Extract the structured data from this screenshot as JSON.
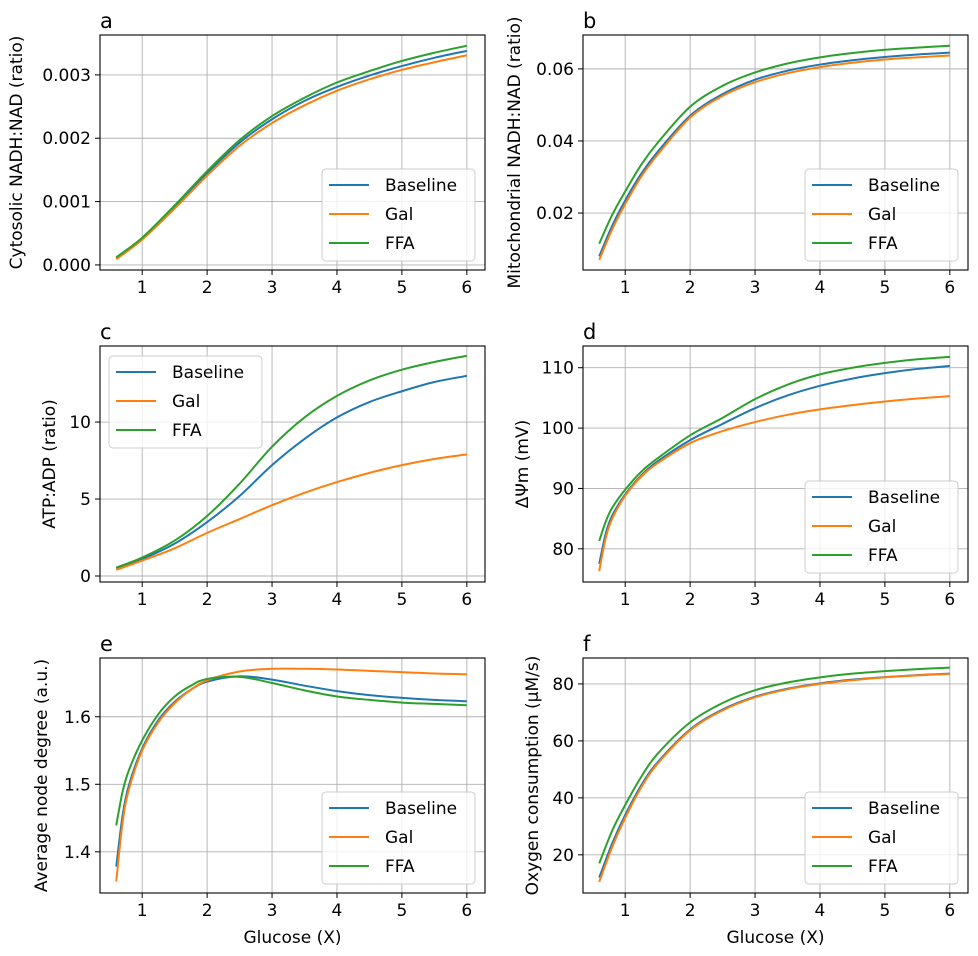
{
  "chart_data": [
    {
      "type": "line",
      "panel": "a",
      "title": "a",
      "xlabel": "",
      "ylabel": "Cytosolic NADH:NAD (ratio)",
      "xlim": [
        0.35,
        6.28
      ],
      "ylim": [
        -8e-05,
        0.00363
      ],
      "xticks": [
        1,
        2,
        3,
        4,
        5,
        6
      ],
      "xtick_labels": [
        "1",
        "2",
        "3",
        "4",
        "5",
        "6"
      ],
      "yticks": [
        0,
        0.001,
        0.002,
        0.003
      ],
      "ytick_labels": [
        "0.000",
        "0.001",
        "0.002",
        "0.003"
      ],
      "grid": true,
      "legend": "lower-right",
      "x": [
        0.6,
        1.0,
        1.5,
        2.0,
        2.5,
        3.0,
        3.5,
        4.0,
        4.5,
        5.0,
        5.5,
        6.0
      ],
      "series": [
        {
          "name": "Baseline",
          "values": [
            0.0001,
            0.00042,
            0.00092,
            0.00145,
            0.00193,
            0.0023,
            0.00259,
            0.00281,
            0.00299,
            0.00314,
            0.00327,
            0.00338
          ]
        },
        {
          "name": "Gal",
          "values": [
            9e-05,
            0.0004,
            0.00089,
            0.00141,
            0.00188,
            0.00224,
            0.00252,
            0.00275,
            0.00293,
            0.00308,
            0.0032,
            0.00331
          ]
        },
        {
          "name": "FFA",
          "values": [
            0.00012,
            0.00043,
            0.00094,
            0.00148,
            0.00197,
            0.00235,
            0.00264,
            0.00288,
            0.00306,
            0.00322,
            0.00335,
            0.00346
          ]
        }
      ]
    },
    {
      "type": "line",
      "panel": "b",
      "title": "b",
      "xlabel": "",
      "ylabel": "Mitochondrial NADH:NAD (ratio)",
      "xlim": [
        0.35,
        6.28
      ],
      "ylim": [
        0.0042,
        0.0694
      ],
      "xticks": [
        1,
        2,
        3,
        4,
        5,
        6
      ],
      "xtick_labels": [
        "1",
        "2",
        "3",
        "4",
        "5",
        "6"
      ],
      "yticks": [
        0.02,
        0.04,
        0.06
      ],
      "ytick_labels": [
        "0.02",
        "0.04",
        "0.06"
      ],
      "grid": true,
      "legend": "lower-right",
      "x": [
        0.6,
        0.8,
        1.0,
        1.25,
        1.5,
        2.0,
        2.5,
        3.0,
        3.5,
        4.0,
        4.5,
        5.0,
        5.5,
        6.0
      ],
      "series": [
        {
          "name": "Baseline",
          "values": [
            0.008,
            0.0165,
            0.0235,
            0.031,
            0.037,
            0.047,
            0.053,
            0.057,
            0.0595,
            0.0612,
            0.0624,
            0.0633,
            0.064,
            0.0645
          ]
        },
        {
          "name": "Gal",
          "values": [
            0.007,
            0.0155,
            0.0225,
            0.0302,
            0.0362,
            0.0465,
            0.0525,
            0.0563,
            0.0588,
            0.0605,
            0.0617,
            0.0626,
            0.0632,
            0.0637
          ]
        },
        {
          "name": "FFA",
          "values": [
            0.0115,
            0.0195,
            0.026,
            0.0335,
            0.0395,
            0.0495,
            0.0553,
            0.059,
            0.0615,
            0.0632,
            0.0644,
            0.0653,
            0.0659,
            0.0664
          ]
        }
      ]
    },
    {
      "type": "line",
      "panel": "c",
      "title": "c",
      "xlabel": "",
      "ylabel": "ATP:ADP (ratio)",
      "xlim": [
        0.35,
        6.28
      ],
      "ylim": [
        -0.39,
        14.94
      ],
      "xticks": [
        1,
        2,
        3,
        4,
        5,
        6
      ],
      "xtick_labels": [
        "1",
        "2",
        "3",
        "4",
        "5",
        "6"
      ],
      "yticks": [
        0,
        5,
        10
      ],
      "ytick_labels": [
        "0",
        "5",
        "10"
      ],
      "grid": true,
      "legend": "upper-left",
      "x": [
        0.6,
        1.0,
        1.5,
        2.0,
        2.5,
        3.0,
        3.5,
        4.0,
        4.5,
        5.0,
        5.5,
        6.0
      ],
      "series": [
        {
          "name": "Baseline",
          "values": [
            0.5,
            1.1,
            2.1,
            3.5,
            5.2,
            7.2,
            8.9,
            10.3,
            11.3,
            12.0,
            12.6,
            13.0
          ]
        },
        {
          "name": "Gal",
          "values": [
            0.4,
            1.0,
            1.8,
            2.8,
            3.7,
            4.6,
            5.4,
            6.1,
            6.7,
            7.2,
            7.6,
            7.9
          ]
        },
        {
          "name": "FFA",
          "values": [
            0.55,
            1.2,
            2.3,
            3.9,
            6.0,
            8.4,
            10.3,
            11.7,
            12.7,
            13.4,
            13.9,
            14.3
          ]
        }
      ]
    },
    {
      "type": "line",
      "panel": "d",
      "title": "d",
      "xlabel": "",
      "ylabel": "ΔΨm (mV)",
      "xlim": [
        0.35,
        6.28
      ],
      "ylim": [
        74.5,
        113.6
      ],
      "xticks": [
        1,
        2,
        3,
        4,
        5,
        6
      ],
      "xtick_labels": [
        "1",
        "2",
        "3",
        "4",
        "5",
        "6"
      ],
      "yticks": [
        80,
        90,
        100,
        110
      ],
      "ytick_labels": [
        "80",
        "90",
        "100",
        "110"
      ],
      "grid": true,
      "legend": "lower-right",
      "x": [
        0.6,
        0.7,
        0.8,
        1.0,
        1.25,
        1.5,
        2.0,
        2.5,
        3.0,
        3.5,
        4.0,
        4.5,
        5.0,
        5.5,
        6.0
      ],
      "series": [
        {
          "name": "Baseline",
          "values": [
            77.5,
            82.5,
            85.5,
            89.0,
            92.2,
            94.5,
            98.0,
            100.7,
            103.3,
            105.4,
            107.0,
            108.2,
            109.1,
            109.8,
            110.3
          ]
        },
        {
          "name": "Gal",
          "values": [
            76.3,
            81.8,
            85.0,
            88.8,
            92.0,
            94.2,
            97.5,
            99.5,
            101.0,
            102.2,
            103.1,
            103.8,
            104.4,
            104.9,
            105.3
          ]
        },
        {
          "name": "FFA",
          "values": [
            81.3,
            84.5,
            86.8,
            89.8,
            92.8,
            95.0,
            98.8,
            101.7,
            104.8,
            107.2,
            108.9,
            110.0,
            110.8,
            111.4,
            111.8
          ]
        }
      ]
    },
    {
      "type": "line",
      "panel": "e",
      "title": "e",
      "xlabel": "Glucose (X)",
      "ylabel": "Average node degree (a.u.)",
      "xlim": [
        0.35,
        6.28
      ],
      "ylim": [
        1.339,
        1.687
      ],
      "xticks": [
        1,
        2,
        3,
        4,
        5,
        6
      ],
      "xtick_labels": [
        "1",
        "2",
        "3",
        "4",
        "5",
        "6"
      ],
      "yticks": [
        1.4,
        1.5,
        1.6
      ],
      "ytick_labels": [
        "1.4",
        "1.5",
        "1.6"
      ],
      "grid": true,
      "legend": "lower-right",
      "x": [
        0.6,
        0.7,
        0.8,
        1.0,
        1.25,
        1.5,
        1.75,
        2.0,
        2.5,
        3.0,
        3.5,
        4.0,
        4.5,
        5.0,
        5.5,
        6.0
      ],
      "series": [
        {
          "name": "Baseline",
          "values": [
            1.378,
            1.455,
            1.5,
            1.553,
            1.595,
            1.622,
            1.64,
            1.652,
            1.66,
            1.655,
            1.646,
            1.638,
            1.632,
            1.628,
            1.625,
            1.623
          ]
        },
        {
          "name": "Gal",
          "values": [
            1.356,
            1.445,
            1.494,
            1.55,
            1.592,
            1.62,
            1.64,
            1.654,
            1.667,
            1.671,
            1.671,
            1.67,
            1.668,
            1.666,
            1.664,
            1.663
          ]
        },
        {
          "name": "FFA",
          "values": [
            1.439,
            1.49,
            1.522,
            1.565,
            1.604,
            1.63,
            1.646,
            1.656,
            1.659,
            1.65,
            1.639,
            1.63,
            1.625,
            1.621,
            1.619,
            1.617
          ]
        }
      ]
    },
    {
      "type": "line",
      "panel": "f",
      "title": "f",
      "xlabel": "Glucose (X)",
      "ylabel": "Oxygen consumption (µM/s)",
      "xlim": [
        0.35,
        6.28
      ],
      "ylim": [
        6.6,
        89.1
      ],
      "xticks": [
        1,
        2,
        3,
        4,
        5,
        6
      ],
      "xtick_labels": [
        "1",
        "2",
        "3",
        "4",
        "5",
        "6"
      ],
      "yticks": [
        20,
        40,
        60,
        80
      ],
      "ytick_labels": [
        "20",
        "40",
        "60",
        "80"
      ],
      "grid": true,
      "legend": "lower-right",
      "x": [
        0.6,
        0.8,
        1.0,
        1.25,
        1.5,
        2.0,
        2.5,
        3.0,
        3.5,
        4.0,
        4.5,
        5.0,
        5.5,
        6.0
      ],
      "series": [
        {
          "name": "Baseline",
          "values": [
            12.0,
            24.0,
            34.0,
            44.5,
            52.5,
            64.0,
            71.0,
            75.5,
            78.3,
            80.2,
            81.5,
            82.4,
            83.1,
            83.6
          ]
        },
        {
          "name": "Gal",
          "values": [
            10.5,
            22.8,
            33.0,
            43.8,
            52.0,
            63.7,
            70.7,
            75.3,
            78.1,
            80.0,
            81.3,
            82.3,
            83.0,
            83.5
          ]
        },
        {
          "name": "FFA",
          "values": [
            17.0,
            28.5,
            37.5,
            47.5,
            55.5,
            66.5,
            73.3,
            77.8,
            80.5,
            82.3,
            83.6,
            84.5,
            85.2,
            85.7
          ]
        }
      ]
    }
  ],
  "legend_entries": [
    "Baseline",
    "Gal",
    "FFA"
  ],
  "colors": {
    "Baseline": "#1f77b4",
    "Gal": "#ff7f0e",
    "FFA": "#2ca02c",
    "grid": "#b0b0b0",
    "axes": "#000000",
    "legend_border": "#cccccc"
  }
}
